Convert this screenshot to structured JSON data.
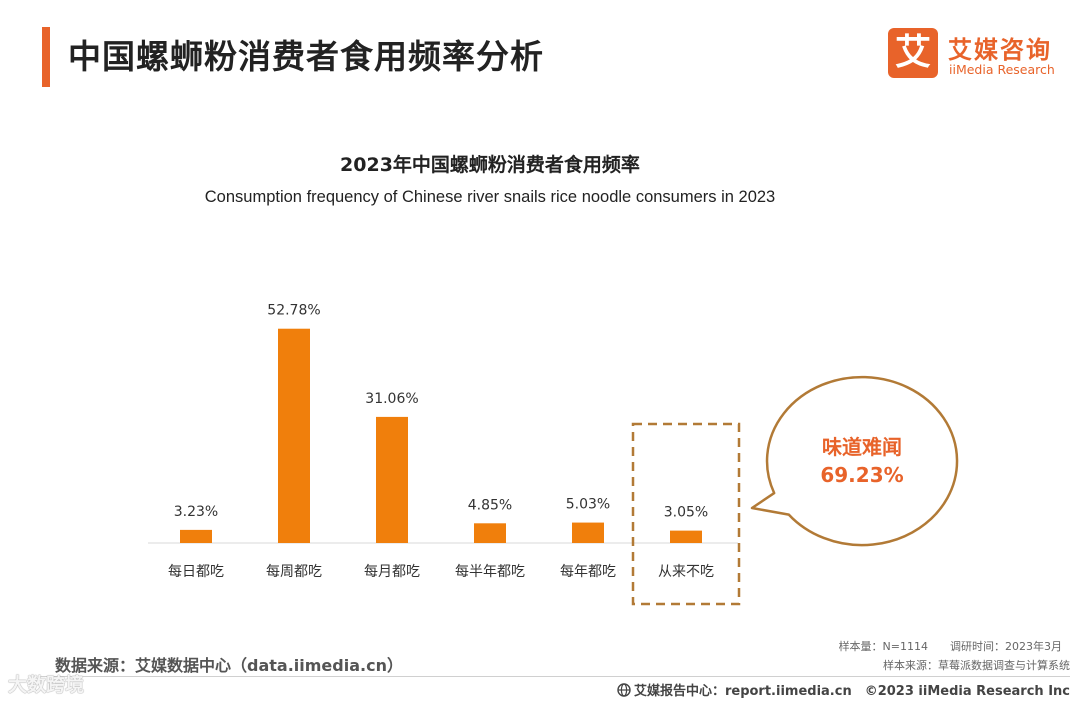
{
  "header": {
    "title": "中国螺蛳粉消费者食用频率分析",
    "logo_mark": "艾",
    "logo_cn": "艾媒咨询",
    "logo_en": "iiMedia Research"
  },
  "chart_data": {
    "type": "bar",
    "title": "2023年中国螺蛳粉消费者食用频率",
    "subtitle": "Consumption frequency of Chinese river snails rice noodle consumers in 2023",
    "categories": [
      "每日都吃",
      "每周都吃",
      "每月都吃",
      "每半年都吃",
      "每年都吃",
      "从来不吃"
    ],
    "values": [
      3.23,
      52.78,
      31.06,
      4.85,
      5.03,
      3.05
    ],
    "value_labels": [
      "3.23%",
      "52.78%",
      "31.06%",
      "4.85%",
      "5.03%",
      "3.05%"
    ],
    "unit": "%",
    "bar_color": "#f07f0c",
    "highlight_index": 5,
    "highlight_color": "#b27a36",
    "callout": {
      "label": "味道难闻",
      "value": "69.23%",
      "text_color": "#e8632a",
      "border_color": "#b27a36"
    },
    "xlabel": "",
    "ylabel": "",
    "grid": false
  },
  "meta": {
    "sample": "样本量：N=1114　　调研时间：2023年3月",
    "source": "样本来源：草莓派数据调查与计算系统"
  },
  "data_source": "数据来源：艾媒数据中心（data.iimedia.cn）",
  "footer": "艾媒报告中心：report.iimedia.cn　©2023  iiMedia Research  Inc",
  "watermark": "大数跨境"
}
